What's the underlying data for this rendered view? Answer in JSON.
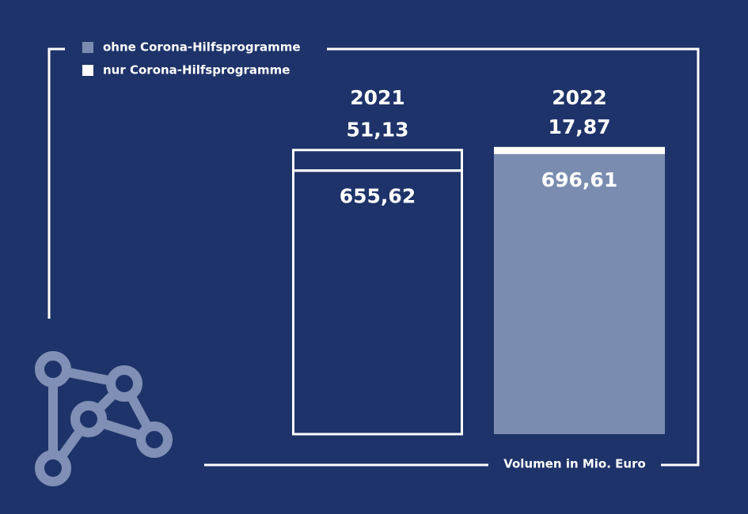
{
  "chart_data": {
    "type": "stacked-bar",
    "categories": [
      "2021",
      "2022"
    ],
    "bar_style": [
      "outline",
      "fill"
    ],
    "series": [
      {
        "name": "ohne Corona-Hilfsprogramme",
        "color": "#7a8db0",
        "values": [
          655.62,
          696.61
        ],
        "value_labels": [
          "655,62",
          "696,61"
        ]
      },
      {
        "name": "nur Corona-Hilfsprogramme",
        "color": "#ffffff",
        "values": [
          51.13,
          17.87
        ],
        "value_labels": [
          "51,13",
          "17,87"
        ]
      }
    ],
    "ylim": [
      0,
      720
    ],
    "y_axis_label": "Volumen in Mio. Euro",
    "category_color": "#f39200"
  }
}
